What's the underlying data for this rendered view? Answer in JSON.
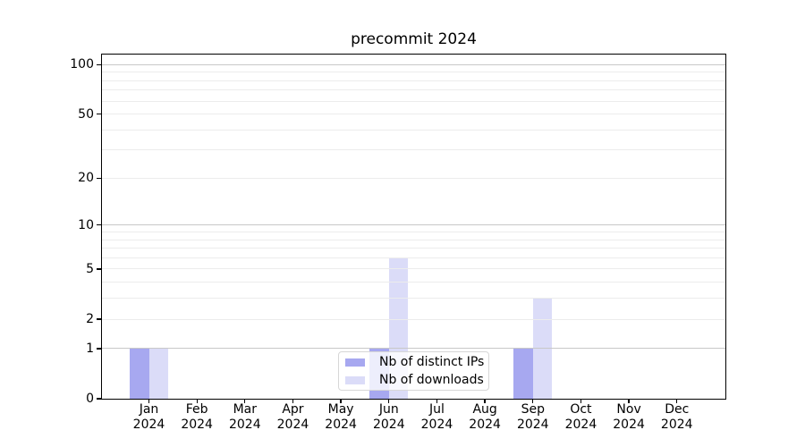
{
  "figure": {
    "background": "#ffffff"
  },
  "chart_data": {
    "type": "bar",
    "title": "precommit 2024",
    "categories": [
      "Jan",
      "Feb",
      "Mar",
      "Apr",
      "May",
      "Jun",
      "Jul",
      "Aug",
      "Sep",
      "Oct",
      "Nov",
      "Dec"
    ],
    "category_year": "2024",
    "series": [
      {
        "name": "Nb of distinct IPs",
        "color": "#a7a8f0",
        "values": [
          1,
          0,
          0,
          0,
          0,
          1,
          0,
          0,
          1,
          0,
          0,
          0
        ]
      },
      {
        "name": "Nb of downloads",
        "color": "#dbdcf8",
        "values": [
          1,
          0,
          0,
          0,
          0,
          6,
          0,
          0,
          3,
          0,
          0,
          0
        ]
      }
    ],
    "xlabel": "",
    "ylabel": "",
    "yscale": "log1p",
    "ylim": [
      0,
      115
    ],
    "ytick_values": [
      0,
      1,
      2,
      5,
      10,
      20,
      50,
      100
    ],
    "ytick_labels": [
      "0",
      "1",
      "2",
      "5",
      "10",
      "20",
      "50",
      "100"
    ],
    "major_grid_values": [
      1,
      10,
      100
    ],
    "minor_grid_values": [
      2,
      3,
      4,
      5,
      6,
      7,
      8,
      9,
      20,
      30,
      40,
      50,
      60,
      70,
      80,
      90
    ],
    "grid": "on",
    "legend_position": "lower center",
    "colors": {
      "major_grid": "#c8c8c8",
      "minor_grid": "#ececec",
      "spine": "#000000",
      "text": "#000000",
      "legend_border": "#d7d7d7"
    }
  }
}
